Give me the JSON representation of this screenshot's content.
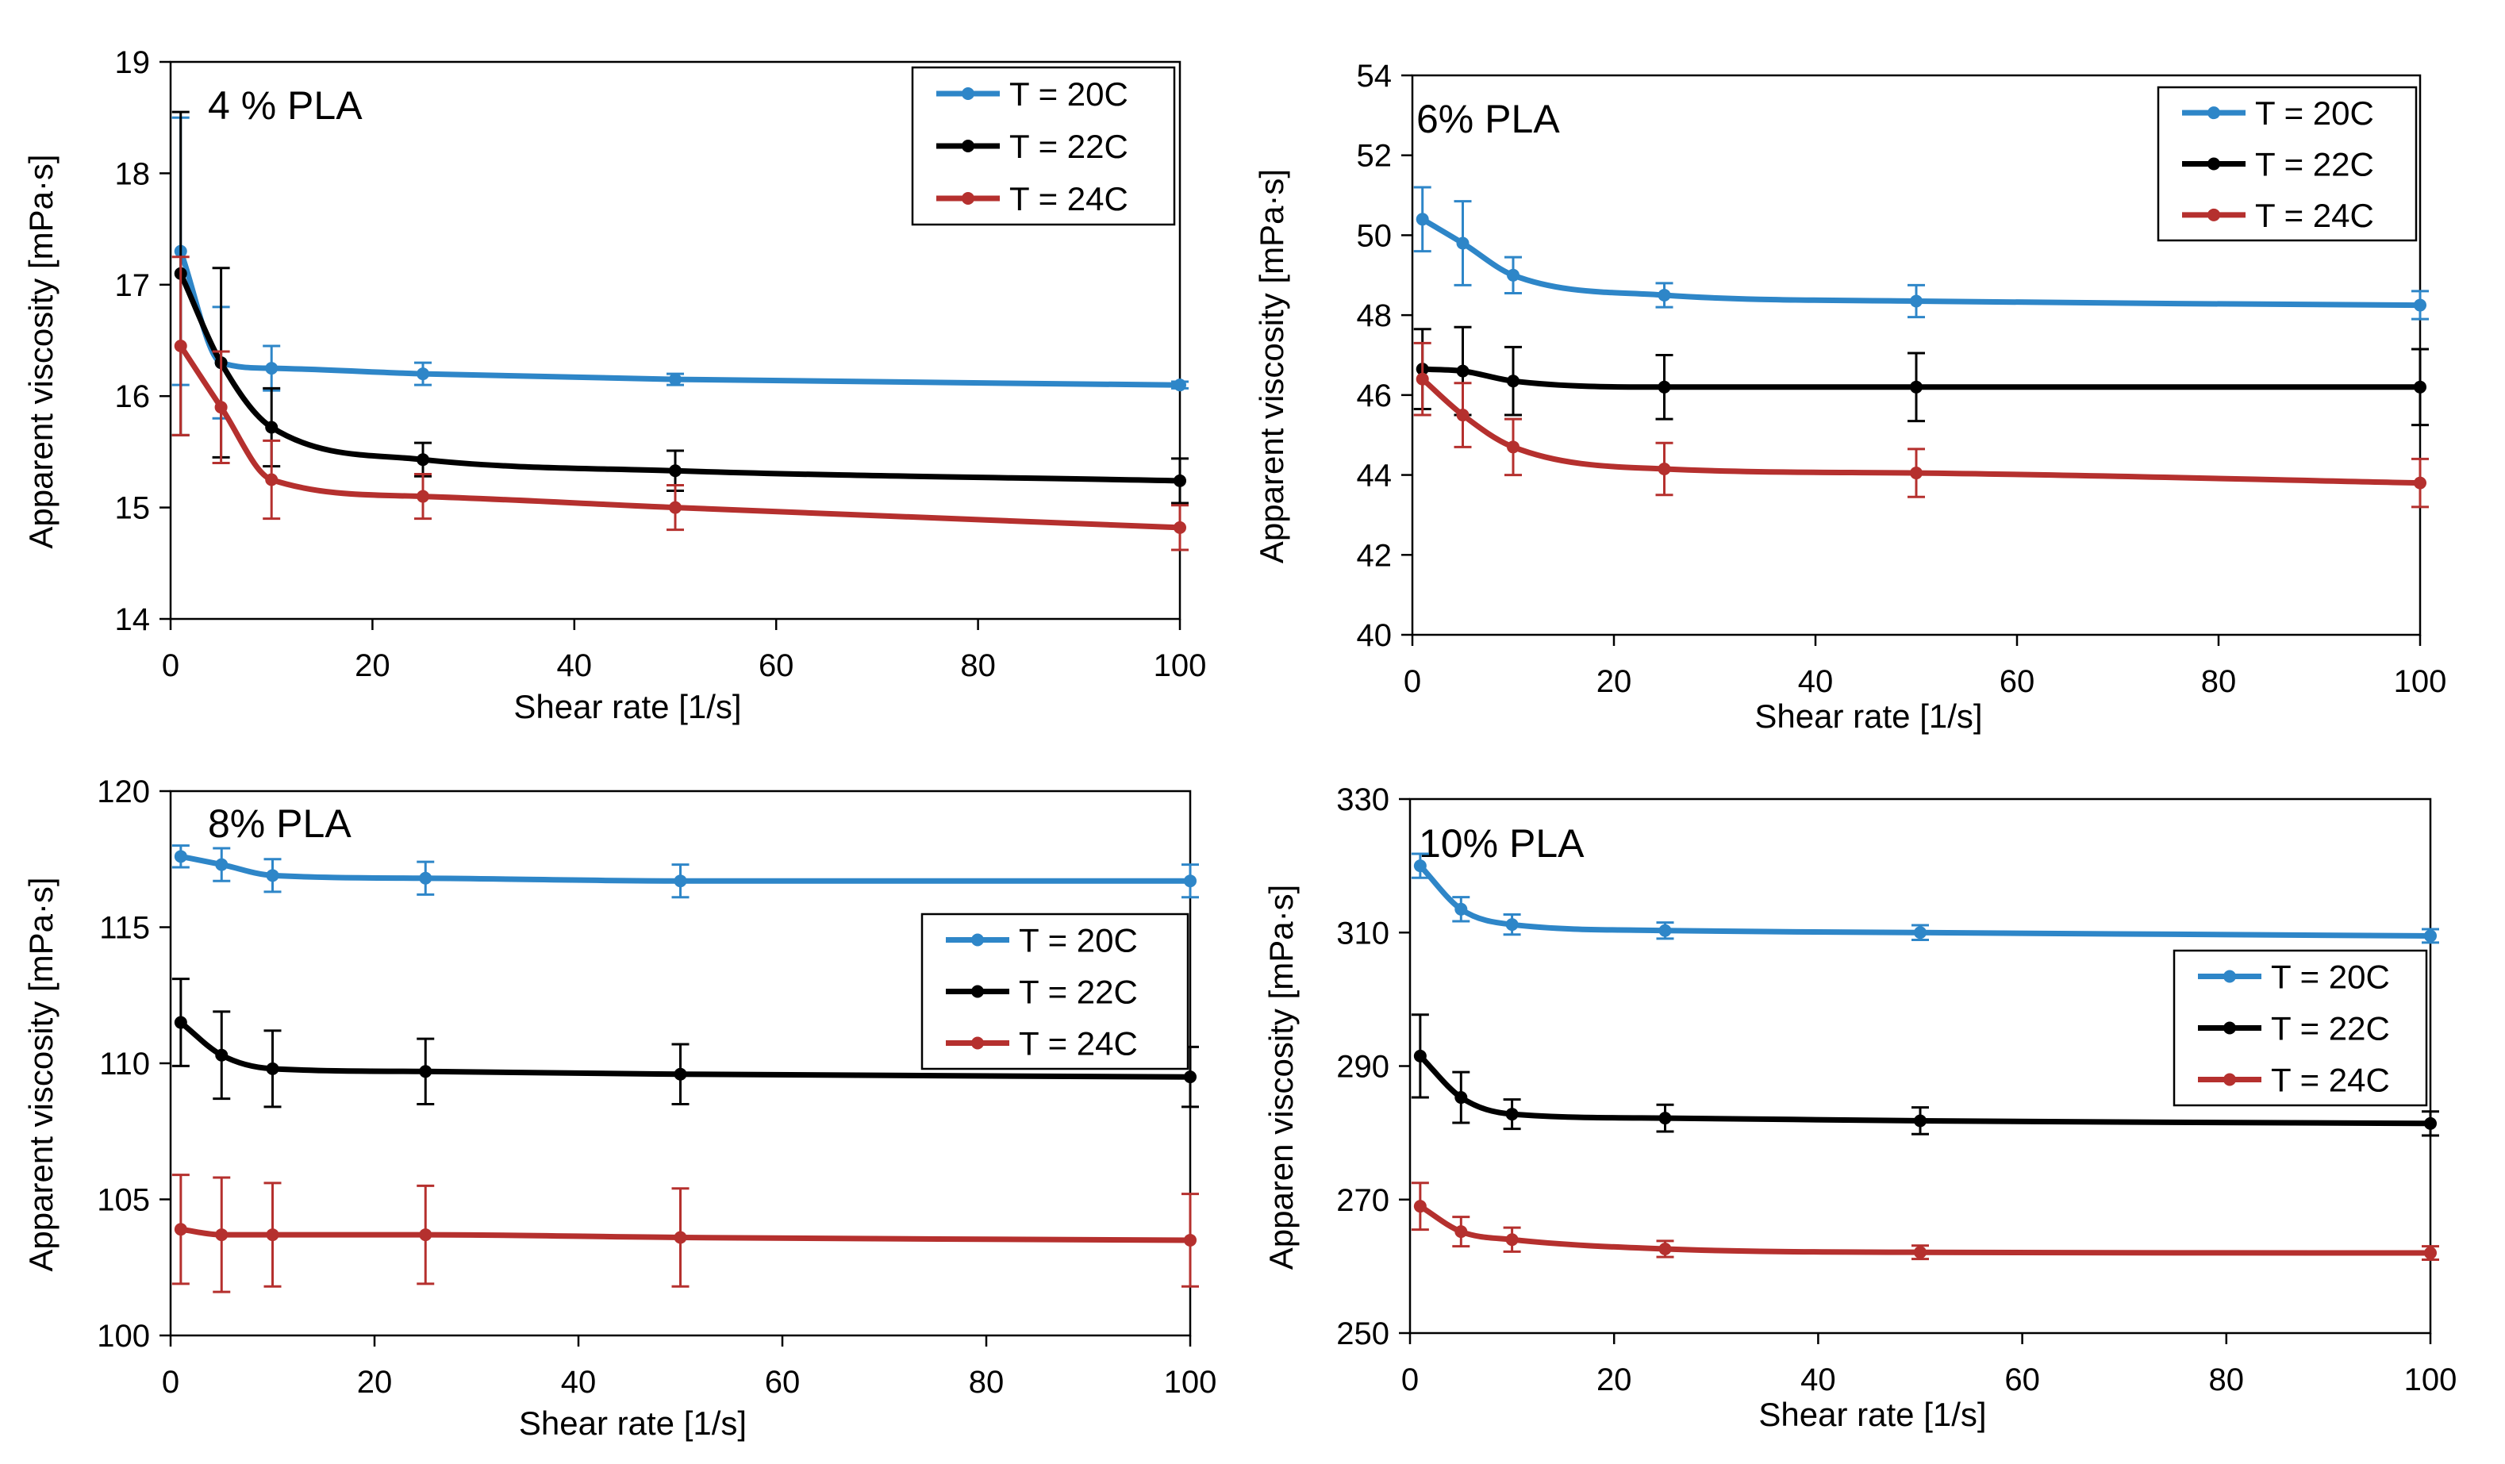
{
  "series_colors": {
    "T = 20C": "#2E86C8",
    "T = 22C": "#000000",
    "T = 24C": "#B5302E"
  },
  "chart_data": [
    {
      "type": "line",
      "title": "4 % PLA",
      "xlabel": "Shear rate [1/s]",
      "ylabel": "Apparent viscosity [mPa·s]",
      "xlim": [
        0,
        100
      ],
      "ylim": [
        14,
        19
      ],
      "xticks": [
        0,
        20,
        40,
        60,
        80,
        100
      ],
      "yticks": [
        14,
        15,
        16,
        17,
        18,
        19
      ],
      "legend_position": "top-right",
      "x": [
        1,
        5,
        10,
        25,
        50,
        100
      ],
      "series": [
        {
          "name": "T = 20C",
          "values": [
            17.3,
            16.3,
            16.25,
            16.2,
            16.15,
            16.1
          ],
          "errors": [
            1.2,
            0.5,
            0.2,
            0.1,
            0.05,
            0.03
          ]
        },
        {
          "name": "T = 22C",
          "values": [
            17.1,
            16.3,
            15.72,
            15.43,
            15.33,
            15.24
          ],
          "errors": [
            1.45,
            0.85,
            0.35,
            0.15,
            0.18,
            0.2
          ]
        },
        {
          "name": "T = 24C",
          "values": [
            16.45,
            15.9,
            15.25,
            15.1,
            15.0,
            14.82
          ],
          "errors": [
            0.8,
            0.5,
            0.35,
            0.2,
            0.2,
            0.2
          ]
        }
      ]
    },
    {
      "type": "line",
      "title": "6% PLA",
      "xlabel": "Shear rate [1/s]",
      "ylabel": "Apparent viscosity [mPa·s]",
      "xlim": [
        0,
        100
      ],
      "ylim": [
        40,
        54
      ],
      "xticks": [
        0,
        20,
        40,
        60,
        80,
        100
      ],
      "yticks": [
        40,
        42,
        44,
        46,
        48,
        50,
        52,
        54
      ],
      "legend_position": "top-right",
      "x": [
        1,
        5,
        10,
        25,
        50,
        100
      ],
      "series": [
        {
          "name": "T = 20C",
          "values": [
            50.4,
            49.8,
            49.0,
            48.5,
            48.35,
            48.25
          ],
          "errors": [
            0.8,
            1.05,
            0.45,
            0.3,
            0.4,
            0.35
          ]
        },
        {
          "name": "T = 22C",
          "values": [
            46.65,
            46.6,
            46.35,
            46.2,
            46.2,
            46.2
          ],
          "errors": [
            1.0,
            1.1,
            0.85,
            0.8,
            0.85,
            0.95
          ]
        },
        {
          "name": "T = 24C",
          "values": [
            46.4,
            45.5,
            44.7,
            44.15,
            44.05,
            43.8
          ],
          "errors": [
            0.9,
            0.8,
            0.7,
            0.65,
            0.6,
            0.6
          ]
        }
      ]
    },
    {
      "type": "line",
      "title": "8% PLA",
      "xlabel": "Shear rate [1/s]",
      "ylabel": "Apparent viscosity [mPa·s]",
      "xlim": [
        0,
        100
      ],
      "ylim": [
        100,
        120
      ],
      "xticks": [
        0,
        20,
        40,
        60,
        80,
        100
      ],
      "yticks": [
        100,
        105,
        110,
        115,
        120
      ],
      "legend_position": "middle-right",
      "x": [
        1,
        5,
        10,
        25,
        50,
        100
      ],
      "series": [
        {
          "name": "T = 20C",
          "values": [
            117.6,
            117.3,
            116.9,
            116.8,
            116.7,
            116.7
          ],
          "errors": [
            0.4,
            0.6,
            0.6,
            0.6,
            0.6,
            0.6
          ]
        },
        {
          "name": "T = 22C",
          "values": [
            111.5,
            110.3,
            109.8,
            109.7,
            109.6,
            109.5
          ],
          "errors": [
            1.6,
            1.6,
            1.4,
            1.2,
            1.1,
            1.1
          ]
        },
        {
          "name": "T = 24C",
          "values": [
            103.9,
            103.7,
            103.7,
            103.7,
            103.6,
            103.5
          ],
          "errors": [
            2.0,
            2.1,
            1.9,
            1.8,
            1.8,
            1.7
          ]
        }
      ]
    },
    {
      "type": "line",
      "title": "10% PLA",
      "xlabel": "Shear rate [1/s]",
      "ylabel": "Apparen viscosity  [mPa·s]",
      "xlim": [
        0,
        100
      ],
      "ylim": [
        250,
        330
      ],
      "xticks": [
        0,
        20,
        40,
        60,
        80,
        100
      ],
      "yticks": [
        250,
        270,
        290,
        310,
        330
      ],
      "legend_position": "middle-right",
      "x": [
        1,
        5,
        10,
        25,
        50,
        100
      ],
      "series": [
        {
          "name": "T = 20C",
          "values": [
            320.0,
            313.5,
            311.2,
            310.3,
            310.0,
            309.5
          ],
          "errors": [
            1.8,
            1.8,
            1.5,
            1.2,
            1.1,
            1.0
          ]
        },
        {
          "name": "T = 22C",
          "values": [
            291.5,
            285.3,
            282.8,
            282.2,
            281.8,
            281.4
          ],
          "errors": [
            6.2,
            3.8,
            2.2,
            2.0,
            2.0,
            1.8
          ]
        },
        {
          "name": "T = 24C",
          "values": [
            269.0,
            265.2,
            264.0,
            262.6,
            262.1,
            262.0
          ],
          "errors": [
            3.5,
            2.2,
            1.8,
            1.2,
            1.0,
            1.0
          ]
        }
      ]
    }
  ]
}
